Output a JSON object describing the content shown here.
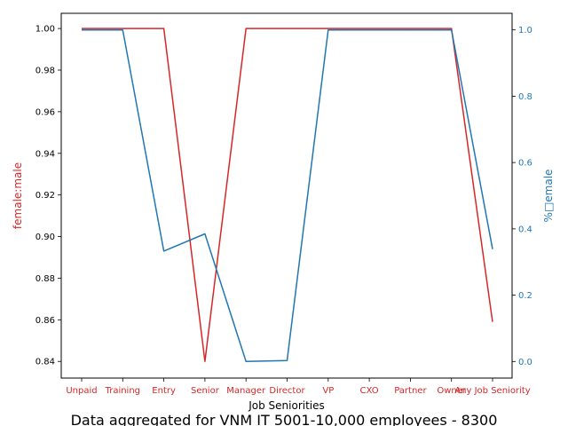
{
  "chart_data": {
    "type": "line",
    "xlabel": "Job Seniorities",
    "caption": "Data aggregated for VNM IT 5001-10,000 employees - 8300",
    "categories": [
      "Unpaid",
      "Training",
      "Entry",
      "Senior",
      "Manager",
      "Director",
      "VP",
      "CXO",
      "Partner",
      "Owner",
      "Any Job Seniority"
    ],
    "series": [
      {
        "axis": "left",
        "color": "#d62728",
        "ylabel": "female:male",
        "values": [
          1.0,
          1.0,
          1.0,
          0.84,
          1.0,
          1.0,
          1.0,
          1.0,
          1.0,
          1.0,
          0.859
        ],
        "ylim": [
          0.832,
          1.0073
        ],
        "ticks": [
          0.84,
          0.86,
          0.88,
          0.9,
          0.92,
          0.94,
          0.96,
          0.98,
          1.0
        ],
        "tick_labels": [
          "0.84",
          "0.86",
          "0.88",
          "0.90",
          "0.92",
          "0.94",
          "0.96",
          "0.98",
          "1.00"
        ]
      },
      {
        "axis": "right",
        "color": "#1f77b4",
        "ylabel": "%□emale",
        "values": [
          1.0,
          1.0,
          0.333,
          0.385,
          0.0,
          0.003,
          1.0,
          1.0,
          1.0,
          1.0,
          0.339
        ],
        "ylim": [
          -0.05,
          1.05
        ],
        "ticks": [
          0.0,
          0.2,
          0.4,
          0.6,
          0.8,
          1.0
        ],
        "tick_labels": [
          "0.0",
          "0.2",
          "0.4",
          "0.6",
          "0.8",
          "1.0"
        ]
      }
    ]
  }
}
